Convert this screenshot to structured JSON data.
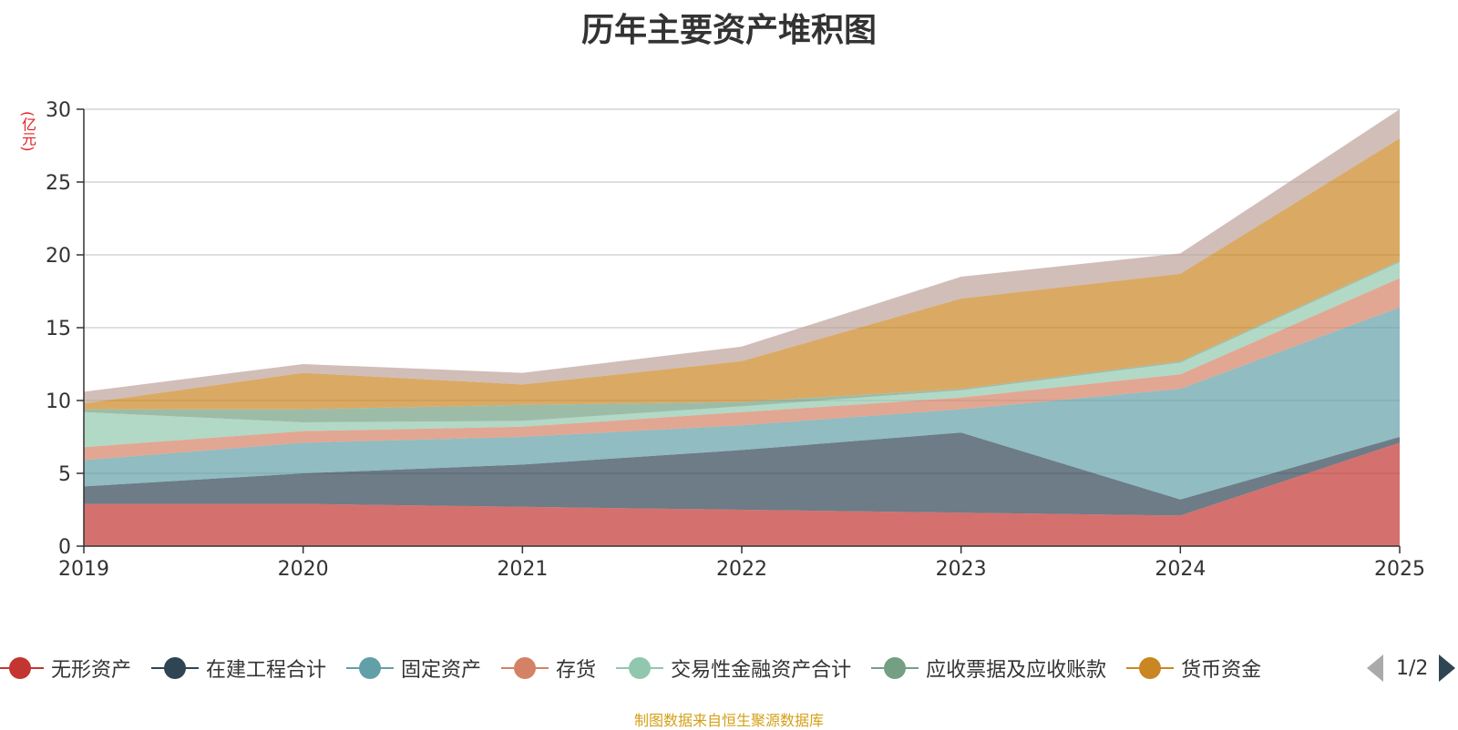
{
  "chart_data": {
    "type": "area",
    "stacked": true,
    "title": "历年主要资产堆积图",
    "ylabel": "(亿元)",
    "xlabel": "",
    "categories": [
      "2019",
      "2020",
      "2021",
      "2022",
      "2023",
      "2024",
      "2025"
    ],
    "ylim": [
      0,
      30
    ],
    "yticks": [
      0,
      5,
      10,
      15,
      20,
      25,
      30
    ],
    "grid": true,
    "series": [
      {
        "name": "无形资产",
        "color": "#c23531",
        "values": [
          2.9,
          2.9,
          2.7,
          2.5,
          2.3,
          2.1,
          7.1
        ]
      },
      {
        "name": "在建工程合计",
        "color": "#2f4554",
        "values": [
          1.2,
          2.1,
          2.9,
          4.1,
          5.5,
          1.1,
          0.4
        ]
      },
      {
        "name": "固定资产",
        "color": "#61a0a8",
        "values": [
          1.8,
          2.1,
          1.9,
          1.7,
          1.6,
          7.6,
          8.9
        ]
      },
      {
        "name": "存货",
        "color": "#d48265",
        "values": [
          0.9,
          0.8,
          0.7,
          0.9,
          0.8,
          1.0,
          2.0
        ]
      },
      {
        "name": "交易性金融资产合计",
        "color": "#91c7ae",
        "values": [
          2.4,
          0.6,
          0.4,
          0.4,
          0.5,
          0.8,
          1.1
        ]
      },
      {
        "name": "应收票据及应收账款",
        "color": "#749f83",
        "values": [
          0.2,
          0.9,
          1.1,
          0.3,
          0.1,
          0.1,
          0.1
        ]
      },
      {
        "name": "货币资金",
        "color": "#ca8622",
        "values": [
          0.4,
          2.5,
          1.4,
          2.8,
          6.2,
          6.0,
          8.4
        ]
      },
      {
        "name": "",
        "color": "#bda29a",
        "values": [
          0.8,
          0.6,
          0.8,
          1.0,
          1.5,
          1.4,
          2.0
        ]
      }
    ]
  },
  "legend": {
    "page": "1/2"
  },
  "footer": "制图数据来自恒生聚源数据库"
}
